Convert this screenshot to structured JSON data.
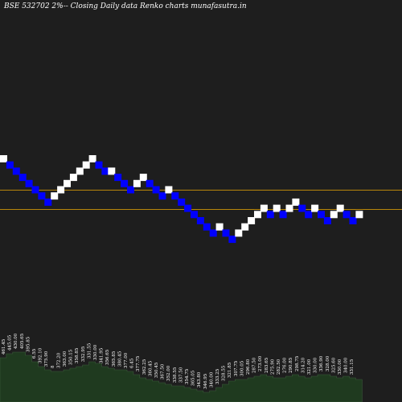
{
  "title": "BSE 532702  2%--  Closing Daily data  Renko  charts munafasutra.in",
  "colors": {
    "background": "#1e1e1e",
    "up_brick": "#ffffff",
    "down_brick": "#0000ff",
    "reference_line": "#b8860b",
    "volume_fill": "#1f3a1f",
    "volume_stroke": "#3a5a3a",
    "label_text": "#ffffff"
  },
  "chart_data": {
    "type": "renko",
    "grid": false,
    "bricks": [
      {
        "row": 0,
        "dir": "up"
      },
      {
        "row": 1,
        "dir": "down"
      },
      {
        "row": 2,
        "dir": "down"
      },
      {
        "row": 3,
        "dir": "down"
      },
      {
        "row": 4,
        "dir": "down"
      },
      {
        "row": 5,
        "dir": "down"
      },
      {
        "row": 6,
        "dir": "down"
      },
      {
        "row": 7,
        "dir": "down"
      },
      {
        "row": 6,
        "dir": "up"
      },
      {
        "row": 5,
        "dir": "up"
      },
      {
        "row": 4,
        "dir": "up"
      },
      {
        "row": 3,
        "dir": "up"
      },
      {
        "row": 2,
        "dir": "up"
      },
      {
        "row": 1,
        "dir": "up"
      },
      {
        "row": 0,
        "dir": "up"
      },
      {
        "row": 1,
        "dir": "down"
      },
      {
        "row": 2,
        "dir": "down"
      },
      {
        "row": 2,
        "dir": "up"
      },
      {
        "row": 3,
        "dir": "down"
      },
      {
        "row": 4,
        "dir": "down"
      },
      {
        "row": 5,
        "dir": "down"
      },
      {
        "row": 4,
        "dir": "up"
      },
      {
        "row": 3,
        "dir": "up"
      },
      {
        "row": 4,
        "dir": "down"
      },
      {
        "row": 5,
        "dir": "down"
      },
      {
        "row": 6,
        "dir": "down"
      },
      {
        "row": 5,
        "dir": "up"
      },
      {
        "row": 6,
        "dir": "down"
      },
      {
        "row": 7,
        "dir": "down"
      },
      {
        "row": 8,
        "dir": "down"
      },
      {
        "row": 9,
        "dir": "down"
      },
      {
        "row": 10,
        "dir": "down"
      },
      {
        "row": 11,
        "dir": "down"
      },
      {
        "row": 12,
        "dir": "down"
      },
      {
        "row": 11,
        "dir": "up"
      },
      {
        "row": 12,
        "dir": "down"
      },
      {
        "row": 13,
        "dir": "down"
      },
      {
        "row": 12,
        "dir": "up"
      },
      {
        "row": 11,
        "dir": "up"
      },
      {
        "row": 10,
        "dir": "up"
      },
      {
        "row": 9,
        "dir": "up"
      },
      {
        "row": 8,
        "dir": "up"
      },
      {
        "row": 9,
        "dir": "down"
      },
      {
        "row": 8,
        "dir": "up"
      },
      {
        "row": 9,
        "dir": "down"
      },
      {
        "row": 8,
        "dir": "up"
      },
      {
        "row": 7,
        "dir": "up"
      },
      {
        "row": 8,
        "dir": "down"
      },
      {
        "row": 9,
        "dir": "down"
      },
      {
        "row": 8,
        "dir": "up"
      },
      {
        "row": 9,
        "dir": "down"
      },
      {
        "row": 10,
        "dir": "down"
      },
      {
        "row": 9,
        "dir": "up"
      },
      {
        "row": 8,
        "dir": "up"
      },
      {
        "row": 9,
        "dir": "down"
      },
      {
        "row": 10,
        "dir": "down"
      },
      {
        "row": 9,
        "dir": "up"
      }
    ],
    "reference_lines": [
      "upper",
      "lower"
    ],
    "volume": [
      55,
      60,
      62,
      62,
      58,
      50,
      44,
      40,
      38,
      38,
      40,
      42,
      44,
      46,
      50,
      48,
      44,
      42,
      40,
      40,
      38,
      34,
      30,
      28,
      26,
      24,
      22,
      20,
      20,
      18,
      16,
      14,
      12,
      14,
      18,
      22,
      26,
      28,
      28,
      30,
      32,
      34,
      32,
      30,
      30,
      32,
      34,
      32,
      30,
      32,
      34,
      34,
      32,
      30,
      32,
      30,
      28
    ],
    "price_labels": [
      "461.45",
      "445.05",
      "430.00",
      "405.65",
      "395.85",
      "6.55",
      "392.10",
      "375.90",
      "8",
      "372.20",
      "363.00",
      "350.15",
      "358.85",
      "332.95",
      "331.55",
      "330.00",
      "341.95",
      "356.65",
      "365.85",
      "380.45",
      "377.00",
      "6.45",
      "377.75",
      "362.25",
      "360.45",
      "350.45",
      "367.50",
      "352.00",
      "338.55",
      "337.50",
      "354.75",
      "365.05",
      "343.80",
      "346.95",
      "340.00",
      "333.25",
      "328.55",
      "321.85",
      "307.75",
      "300.05",
      "296.80",
      "287.50",
      "273.00",
      "283.65",
      "275.90",
      "282.50",
      "276.00",
      "290.85",
      "298.75",
      "314.20",
      "321.00",
      "330.00",
      "336.90",
      "328.00",
      "325.60",
      "330.00",
      "340.00",
      "331.15"
    ]
  }
}
